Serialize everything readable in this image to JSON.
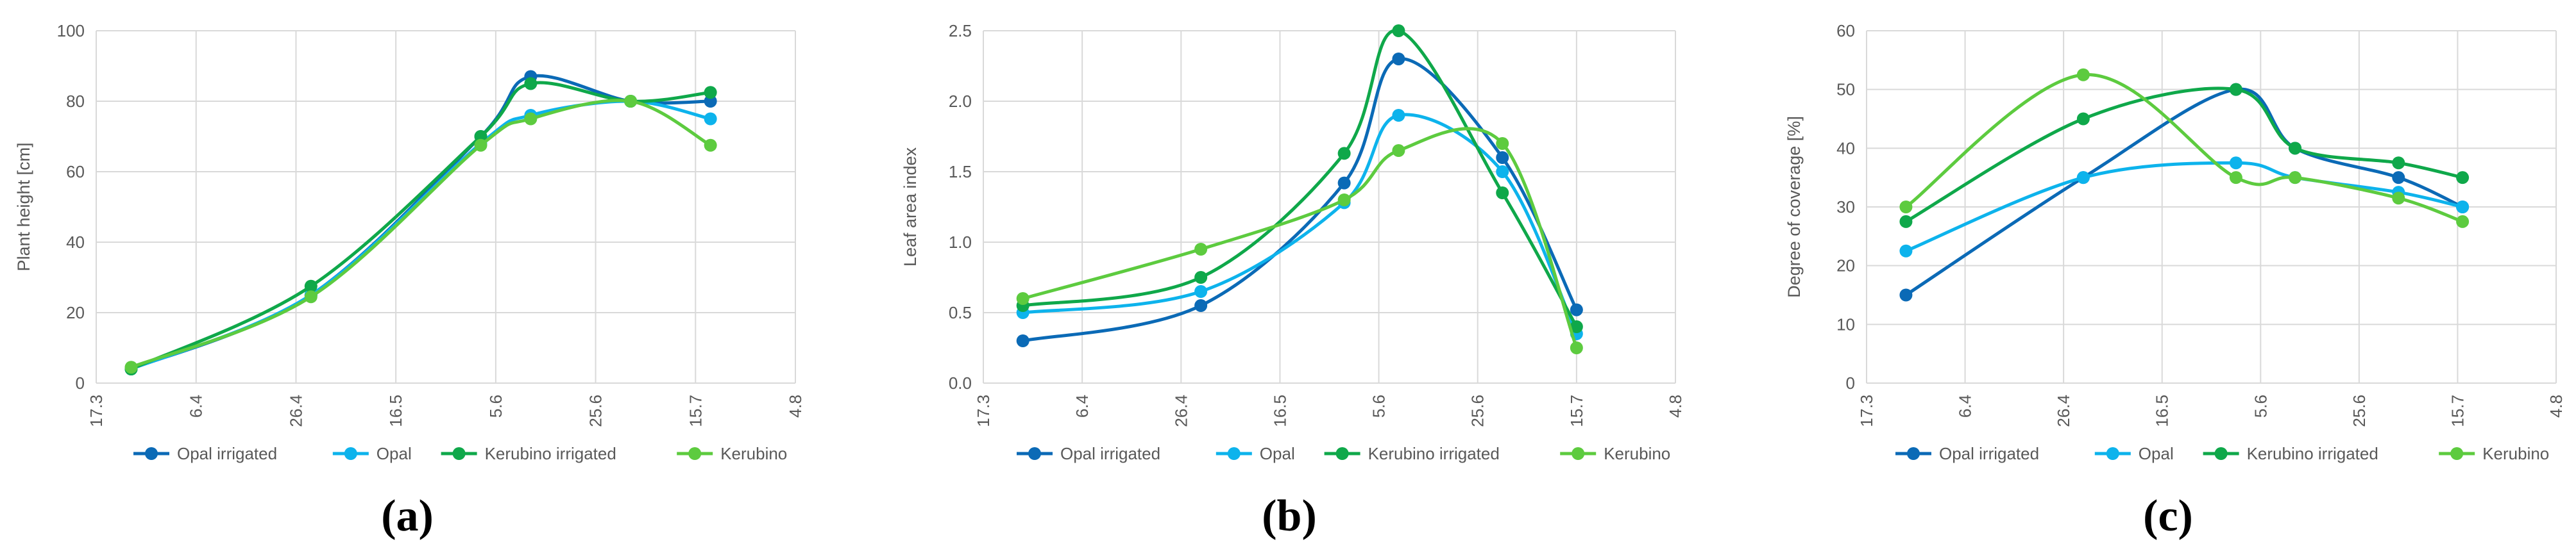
{
  "colors": {
    "opal_irrigated": "#0B6AB6",
    "opal": "#0DB3EC",
    "kerubino_irrigated": "#0FA84A",
    "kerubino": "#5DCB3F",
    "grid": "#D9D9D9",
    "axis_text": "#595959"
  },
  "chart_data": [
    {
      "panel": "a",
      "caption": "(a)",
      "type": "line",
      "smooth": true,
      "x_tick_labels": [
        "17.3",
        "6.4",
        "26.4",
        "16.5",
        "5.6",
        "25.6",
        "15.7",
        "4.8"
      ],
      "xlim": [
        0,
        7
      ],
      "ylabel": "Plant height [cm]",
      "ylim": [
        0,
        100
      ],
      "y_ticks": [
        0,
        20,
        40,
        60,
        80,
        100
      ],
      "y_tick_labels": [
        "0",
        "20",
        "40",
        "60",
        "80",
        "100"
      ],
      "legend": "bottom",
      "series": [
        {
          "name": "Opal irrigated",
          "color_key": "opal_irrigated",
          "x": [
            0.35,
            2.15,
            3.85,
            4.35,
            5.35,
            6.15
          ],
          "y": [
            4,
            25,
            70,
            87,
            80,
            80
          ]
        },
        {
          "name": "Opal",
          "color_key": "opal",
          "x": [
            0.35,
            2.15,
            3.85,
            4.35,
            5.35,
            6.15
          ],
          "y": [
            4,
            25,
            68,
            76,
            80,
            75
          ]
        },
        {
          "name": "Kerubino irrigated",
          "color_key": "kerubino_irrigated",
          "x": [
            0.35,
            2.15,
            3.85,
            4.35,
            5.35,
            6.15
          ],
          "y": [
            4,
            27.5,
            70,
            85,
            80,
            82.5
          ]
        },
        {
          "name": "Kerubino",
          "color_key": "kerubino",
          "x": [
            0.35,
            2.15,
            3.85,
            4.35,
            5.35,
            6.15
          ],
          "y": [
            4.5,
            24.5,
            67.5,
            75,
            80,
            67.5
          ]
        }
      ]
    },
    {
      "panel": "b",
      "caption": "(b)",
      "type": "line",
      "smooth": true,
      "x_tick_labels": [
        "17.3",
        "6.4",
        "26.4",
        "16.5",
        "5.6",
        "25.6",
        "15.7",
        "4.8"
      ],
      "xlim": [
        0,
        7
      ],
      "ylabel": "Leaf area index",
      "ylim": [
        0,
        2.5
      ],
      "y_ticks": [
        0,
        0.5,
        1.0,
        1.5,
        2.0,
        2.5
      ],
      "y_tick_labels": [
        "0.0",
        "0.5",
        "1.0",
        "1.5",
        "2.0",
        "2.5"
      ],
      "legend": "bottom",
      "series": [
        {
          "name": "Opal irrigated",
          "color_key": "opal_irrigated",
          "x": [
            0.4,
            2.2,
            3.65,
            4.2,
            5.25,
            6.0
          ],
          "y": [
            0.3,
            0.55,
            1.42,
            2.3,
            1.6,
            0.52
          ]
        },
        {
          "name": "Opal",
          "color_key": "opal",
          "x": [
            0.4,
            2.2,
            3.65,
            4.2,
            5.25,
            6.0
          ],
          "y": [
            0.5,
            0.65,
            1.28,
            1.9,
            1.5,
            0.35
          ]
        },
        {
          "name": "Kerubino irrigated",
          "color_key": "kerubino_irrigated",
          "x": [
            0.4,
            2.2,
            3.65,
            4.2,
            5.25,
            6.0
          ],
          "y": [
            0.55,
            0.75,
            1.63,
            2.5,
            1.35,
            0.4
          ]
        },
        {
          "name": "Kerubino",
          "color_key": "kerubino",
          "x": [
            0.4,
            2.2,
            3.65,
            4.2,
            5.25,
            6.0
          ],
          "y": [
            0.6,
            0.95,
            1.3,
            1.65,
            1.7,
            0.25
          ]
        }
      ]
    },
    {
      "panel": "c",
      "caption": "(c)",
      "type": "line",
      "smooth": true,
      "x_tick_labels": [
        "17.3",
        "6.4",
        "26.4",
        "16.5",
        "5.6",
        "25.6",
        "15.7",
        "4.8"
      ],
      "xlim": [
        0,
        7
      ],
      "ylabel": "Degree of coverage [%]",
      "ylim": [
        0,
        60
      ],
      "y_ticks": [
        0,
        10,
        20,
        30,
        40,
        50,
        60
      ],
      "y_tick_labels": [
        "0",
        "10",
        "20",
        "30",
        "40",
        "50",
        "60"
      ],
      "legend": "bottom",
      "series": [
        {
          "name": "Opal irrigated",
          "color_key": "opal_irrigated",
          "x": [
            0.4,
            2.2,
            3.75,
            4.35,
            5.4,
            6.05
          ],
          "y": [
            15,
            35,
            50,
            40,
            35,
            30
          ]
        },
        {
          "name": "Opal",
          "color_key": "opal",
          "x": [
            0.4,
            2.2,
            3.75,
            4.35,
            5.4,
            6.05
          ],
          "y": [
            22.5,
            35,
            37.5,
            35,
            32.5,
            30
          ]
        },
        {
          "name": "Kerubino irrigated",
          "color_key": "kerubino_irrigated",
          "x": [
            0.4,
            2.2,
            3.75,
            4.35,
            5.4,
            6.05
          ],
          "y": [
            27.5,
            45,
            50,
            40,
            37.5,
            35
          ]
        },
        {
          "name": "Kerubino",
          "color_key": "kerubino",
          "x": [
            0.4,
            2.2,
            3.75,
            4.35,
            5.4,
            6.05
          ],
          "y": [
            30,
            52.5,
            35,
            35,
            31.5,
            27.5
          ]
        }
      ]
    }
  ]
}
